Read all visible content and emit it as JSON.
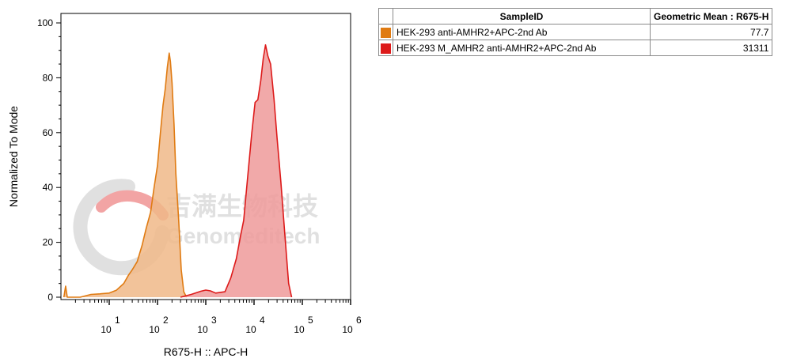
{
  "chart_data": {
    "type": "area",
    "x_scale": "log",
    "xlabel": "R675-H :: APC-H",
    "ylabel": "Normalized To Mode",
    "xlim": [
      1,
      1000000
    ],
    "ylim": [
      0,
      100
    ],
    "y_ticks": [
      "0",
      "20",
      "40",
      "60",
      "80",
      "100"
    ],
    "x_ticks": [
      {
        "value": 10,
        "base": "10",
        "exp": "1"
      },
      {
        "value": 100,
        "base": "10",
        "exp": "2"
      },
      {
        "value": 1000,
        "base": "10",
        "exp": "3"
      },
      {
        "value": 10000,
        "base": "10",
        "exp": "4"
      },
      {
        "value": 100000,
        "base": "10",
        "exp": "5"
      },
      {
        "value": 1000000,
        "base": "10",
        "exp": "6"
      }
    ],
    "grid": false,
    "series": [
      {
        "name": "HEK-293 anti-AMHR2+APC-2nd Ab",
        "color": "#e07b12",
        "fill": "#f0b888",
        "points": [
          [
            1.15,
            0
          ],
          [
            1.25,
            4
          ],
          [
            1.35,
            0
          ],
          [
            2.5,
            0
          ],
          [
            4.2,
            1.0
          ],
          [
            6.4,
            1.2
          ],
          [
            10,
            1.5
          ],
          [
            14,
            2.5
          ],
          [
            20,
            5
          ],
          [
            25,
            8
          ],
          [
            30,
            10
          ],
          [
            38,
            13
          ],
          [
            48,
            19
          ],
          [
            58,
            25
          ],
          [
            72,
            31
          ],
          [
            85,
            40
          ],
          [
            100,
            48
          ],
          [
            115,
            60
          ],
          [
            130,
            70
          ],
          [
            145,
            76
          ],
          [
            160,
            84
          ],
          [
            175,
            89
          ],
          [
            185,
            86
          ],
          [
            200,
            78
          ],
          [
            220,
            63
          ],
          [
            240,
            45
          ],
          [
            275,
            28
          ],
          [
            310,
            10
          ],
          [
            350,
            2
          ],
          [
            400,
            0
          ]
        ]
      },
      {
        "name": "HEK-293 M_AMHR2 anti-AMHR2+APC-2nd Ab",
        "color": "#dd1a1a",
        "fill": "#ee9a9a",
        "points": [
          [
            300,
            0
          ],
          [
            500,
            1.0
          ],
          [
            800,
            2.2
          ],
          [
            1000,
            2.6
          ],
          [
            1250,
            2.3
          ],
          [
            1600,
            1.5
          ],
          [
            2500,
            2.0
          ],
          [
            3300,
            7
          ],
          [
            4300,
            14
          ],
          [
            5200,
            22
          ],
          [
            6100,
            28
          ],
          [
            7400,
            44
          ],
          [
            9000,
            60
          ],
          [
            10500,
            71
          ],
          [
            12000,
            72
          ],
          [
            13800,
            79
          ],
          [
            15500,
            87
          ],
          [
            17300,
            92
          ],
          [
            19300,
            88
          ],
          [
            22000,
            85
          ],
          [
            26000,
            72
          ],
          [
            30000,
            58
          ],
          [
            36000,
            42
          ],
          [
            43000,
            24
          ],
          [
            52000,
            5
          ],
          [
            60000,
            0
          ]
        ]
      }
    ],
    "legend": {
      "placement": "right",
      "headers": [
        "SampleID",
        "Geometric Mean : R675-H"
      ],
      "rows": [
        {
          "sample": "HEK-293 anti-AMHR2+APC-2nd Ab",
          "value": "77.7",
          "color": "#e07b12"
        },
        {
          "sample": "HEK-293 M_AMHR2 anti-AMHR2+APC-2nd Ab",
          "value": "31311",
          "color": "#dd1a1a"
        }
      ]
    }
  },
  "watermark": {
    "cn_text": "吉满生物科技",
    "en_text": "Genomeditech",
    "color": "#c8c8c8",
    "logo_red": "#e85a5a"
  }
}
